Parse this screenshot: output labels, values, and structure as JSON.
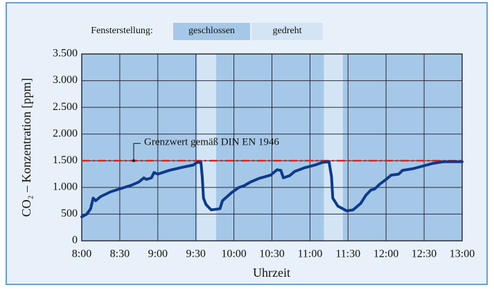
{
  "chart_data": {
    "type": "line",
    "y_label": "CO₂ – Konzentration [ppm]",
    "x_label": "Uhrzeit",
    "legend_title": "Fensterstellung:",
    "window_states": [
      {
        "name": "geschlossen",
        "color": "#a6c8e8"
      },
      {
        "name": "gedreht",
        "color": "#d3e5f5"
      }
    ],
    "spans": [
      {
        "from": 571,
        "to": 586
      },
      {
        "from": 671,
        "to": 686
      }
    ],
    "reference_line": {
      "value": 1500,
      "label": "Grenzwert gemäß DIN EN 1946",
      "color": "#d42a2a"
    },
    "color": "#0d3a8a",
    "x": [
      480,
      484,
      487,
      489,
      491,
      495,
      503,
      511,
      519,
      525,
      529,
      531,
      535,
      537,
      540,
      549,
      558,
      568,
      571,
      574,
      575,
      576,
      578,
      582,
      589,
      591,
      598,
      604,
      608,
      613,
      620,
      629,
      631,
      634,
      637,
      639,
      644,
      648,
      656,
      664,
      670,
      675,
      677,
      678,
      682,
      689,
      694,
      700,
      704,
      708,
      711,
      715,
      720,
      724,
      730,
      733,
      741,
      749,
      757,
      765,
      780
    ],
    "values": [
      450,
      500,
      600,
      800,
      750,
      830,
      920,
      980,
      1040,
      1100,
      1180,
      1150,
      1180,
      1280,
      1250,
      1320,
      1370,
      1420,
      1470,
      1470,
      1200,
      800,
      680,
      580,
      600,
      750,
      900,
      1000,
      1030,
      1100,
      1170,
      1230,
      1270,
      1330,
      1320,
      1180,
      1220,
      1300,
      1370,
      1420,
      1470,
      1480,
      1200,
      800,
      650,
      560,
      580,
      700,
      850,
      950,
      970,
      1060,
      1150,
      1230,
      1250,
      1320,
      1350,
      1400,
      1450,
      1480,
      1480
    ],
    "xlim": [
      480,
      780
    ],
    "xticks": [
      {
        "value": 480,
        "label": "8:00"
      },
      {
        "value": 510,
        "label": "8:30"
      },
      {
        "value": 540,
        "label": "9:00"
      },
      {
        "value": 570,
        "label": "9:30"
      },
      {
        "value": 600,
        "label": "10:00"
      },
      {
        "value": 630,
        "label": "10:30"
      },
      {
        "value": 660,
        "label": "11:00"
      },
      {
        "value": 690,
        "label": "11:30"
      },
      {
        "value": 720,
        "label": "12:00"
      },
      {
        "value": 750,
        "label": "12:30"
      },
      {
        "value": 780,
        "label": "13:00"
      }
    ],
    "ylim": [
      0,
      3500
    ],
    "yticks": [
      0,
      500,
      {
        "value": 1000,
        "label": "1.000"
      },
      {
        "value": 1500,
        "label": "1.500"
      },
      {
        "value": 2000,
        "label": "2.000"
      },
      {
        "value": 2500,
        "label": "2.500"
      },
      {
        "value": 3000,
        "label": "3.000"
      },
      {
        "value": 3500,
        "label": "3.500"
      }
    ],
    "grid": true
  }
}
